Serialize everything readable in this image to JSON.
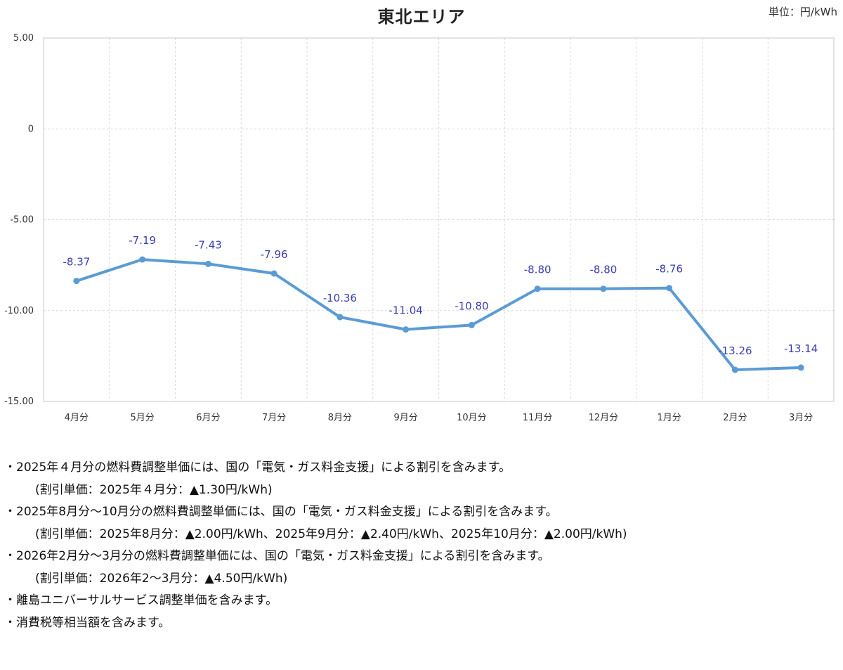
{
  "unit_label": "単位：円/kWh",
  "chart_data": {
    "type": "line",
    "title": "東北エリア",
    "xlabel": "",
    "ylabel": "",
    "categories": [
      "4月分",
      "5月分",
      "6月分",
      "7月分",
      "8月分",
      "9月分",
      "10月分",
      "11月分",
      "12月分",
      "1月分",
      "2月分",
      "3月分"
    ],
    "series": [
      {
        "values": [
          -8.37,
          -7.19,
          -7.43,
          -7.96,
          -10.36,
          -11.04,
          -10.8,
          -8.8,
          -8.8,
          -8.76,
          -13.26,
          -13.14
        ],
        "labels": [
          "-8.37",
          "-7.19",
          "-7.43",
          "-7.96",
          "-10.36",
          "-11.04",
          "-10.80",
          "-8.80",
          "-8.80",
          "-8.76",
          "-13.26",
          "-13.14"
        ],
        "color": "#5b9bd5"
      }
    ],
    "ylim": [
      -15,
      5
    ],
    "yticks": [
      5,
      0,
      -5,
      -10,
      -15
    ],
    "ytick_labels": [
      "5.00",
      "0",
      "-5.00",
      "-10.00",
      "-15.00"
    ],
    "grid": true,
    "label_color": "#3a3fae"
  },
  "notes": [
    {
      "type": "main",
      "text": "2025年４月分の燃料費調整単価には、国の「電気・ガス料金支援」による割引を含みます。"
    },
    {
      "type": "sub",
      "text": "(割引単価：2025年４月分：▲1.30円/kWh)"
    },
    {
      "type": "main",
      "text": "2025年8月分～10月分の燃料費調整単価には、国の「電気・ガス料金支援」による割引を含みます。"
    },
    {
      "type": "sub",
      "text": "(割引単価：2025年8月分：▲2.00円/kWh、2025年9月分：▲2.40円/kWh、2025年10月分：▲2.00円/kWh)"
    },
    {
      "type": "main",
      "text": "2026年2月分～3月分の燃料費調整単価には、国の「電気・ガス料金支援」による割引を含みます。"
    },
    {
      "type": "sub",
      "text": "(割引単価：2026年2～3月分：▲4.50円/kWh)"
    },
    {
      "type": "main",
      "text": "離島ユニバーサルサービス調整単価を含みます。"
    },
    {
      "type": "main",
      "text": "消費税等相当額を含みます。"
    }
  ]
}
